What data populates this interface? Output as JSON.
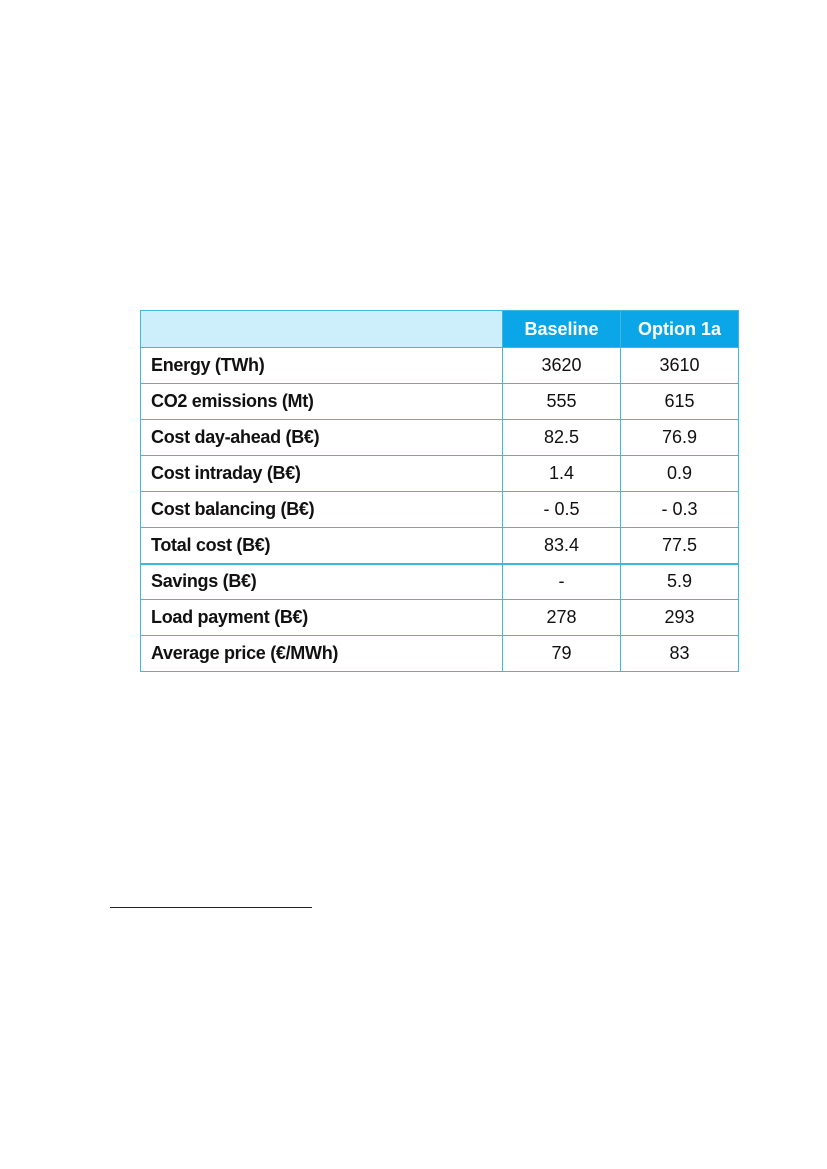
{
  "table": {
    "headers": [
      "",
      "Baseline",
      "Option 1a"
    ],
    "rows": [
      {
        "label": "Energy (TWh)",
        "baseline": "3620",
        "option1a": "3610"
      },
      {
        "label": "CO2 emissions (Mt)",
        "baseline": "555",
        "option1a": "615"
      },
      {
        "label": "Cost day-ahead (B€)",
        "baseline": "82.5",
        "option1a": "76.9"
      },
      {
        "label": "Cost intraday (B€)",
        "baseline": "1.4",
        "option1a": "0.9"
      },
      {
        "label": "Cost balancing (B€)",
        "baseline": "- 0.5",
        "option1a": "- 0.3"
      },
      {
        "label": "Total cost (B€)",
        "baseline": "83.4",
        "option1a": "77.5"
      },
      {
        "label": "Savings (B€)",
        "baseline": "-",
        "option1a": "5.9"
      },
      {
        "label": "Load payment (B€)",
        "baseline": "278",
        "option1a": "293"
      },
      {
        "label": "Average price (€/MWh)",
        "baseline": "79",
        "option1a": "83"
      }
    ]
  },
  "colors": {
    "header_fill": "#0aa6e8",
    "header_blank_fill": "#cdeffb",
    "border": "#3fb8df"
  }
}
